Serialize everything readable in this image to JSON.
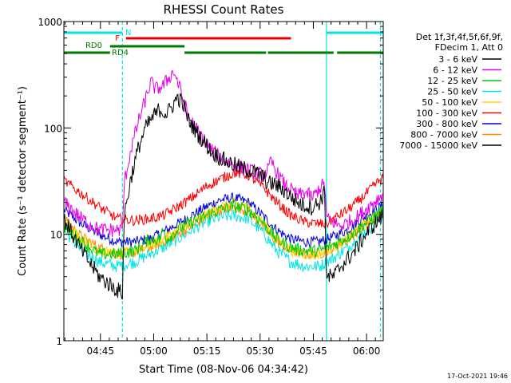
{
  "chart_data": {
    "type": "line",
    "title": "RHESSI Count Rates",
    "xlabel": "Start Time (08-Nov-06 04:34:42)",
    "ylabel": "Count Rate (s⁻¹ detector segment⁻¹)",
    "y_scale": "log",
    "ylim": [
      1,
      1000
    ],
    "xlim_minutes": [
      0.0,
      90.0
    ],
    "y_ticks": [
      {
        "value": 1,
        "label": "1"
      },
      {
        "value": 10,
        "label": "10"
      },
      {
        "value": 100,
        "label": "100"
      },
      {
        "value": 1000,
        "label": "1000"
      }
    ],
    "x_ticks": [
      {
        "minute": 10.3,
        "label": "04:45"
      },
      {
        "minute": 25.3,
        "label": "05:00"
      },
      {
        "minute": 40.3,
        "label": "05:15"
      },
      {
        "minute": 55.3,
        "label": "05:30"
      },
      {
        "minute": 70.3,
        "label": "05:45"
      },
      {
        "minute": 85.3,
        "label": "06:00"
      }
    ],
    "legend_header": [
      "Det 1f,3f,4f,5f,6f,9f,",
      "FDecim 1, Att 0"
    ],
    "series": [
      {
        "name": "3 - 6 keV",
        "color": "#000000",
        "noise": 0.08,
        "points": [
          [
            0,
            14
          ],
          [
            5,
            7
          ],
          [
            10,
            4
          ],
          [
            15,
            3
          ],
          [
            16.5,
            2.8
          ],
          [
            17,
            15
          ],
          [
            19,
            35
          ],
          [
            21,
            65
          ],
          [
            23,
            100
          ],
          [
            25,
            125
          ],
          [
            27,
            150
          ],
          [
            29,
            135
          ],
          [
            31,
            170
          ],
          [
            32,
            195
          ],
          [
            33.5,
            170
          ],
          [
            35,
            120
          ],
          [
            38,
            85
          ],
          [
            42,
            58
          ],
          [
            46,
            48
          ],
          [
            50,
            42
          ],
          [
            54,
            38
          ],
          [
            56,
            35
          ],
          [
            57.5,
            30
          ],
          [
            59,
            30
          ],
          [
            62,
            26
          ],
          [
            65,
            21
          ],
          [
            67,
            19
          ],
          [
            70,
            18
          ],
          [
            72,
            20
          ],
          [
            73.5,
            25
          ],
          [
            74,
            4
          ],
          [
            76,
            4
          ],
          [
            78,
            5
          ],
          [
            82,
            7
          ],
          [
            85,
            10
          ],
          [
            88,
            13
          ],
          [
            90,
            15
          ]
        ]
      },
      {
        "name": "6 - 12 keV",
        "color": "#e600e6",
        "noise": 0.07,
        "points": [
          [
            0,
            20
          ],
          [
            5,
            14
          ],
          [
            10,
            11
          ],
          [
            15,
            11
          ],
          [
            16.5,
            11
          ],
          [
            17,
            30
          ],
          [
            19,
            65
          ],
          [
            21,
            115
          ],
          [
            23,
            185
          ],
          [
            24.5,
            270
          ],
          [
            26,
            230
          ],
          [
            28,
            250
          ],
          [
            30,
            310
          ],
          [
            31,
            340
          ],
          [
            33,
            220
          ],
          [
            35,
            130
          ],
          [
            38,
            90
          ],
          [
            42,
            60
          ],
          [
            46,
            48
          ],
          [
            50,
            42
          ],
          [
            54,
            38
          ],
          [
            56,
            36
          ],
          [
            57.5,
            40
          ],
          [
            58.5,
            48
          ],
          [
            60,
            38
          ],
          [
            62,
            30
          ],
          [
            64,
            26
          ],
          [
            66,
            23
          ],
          [
            68,
            25
          ],
          [
            70,
            22
          ],
          [
            72,
            27
          ],
          [
            73.5,
            30
          ],
          [
            74,
            14
          ],
          [
            78,
            12
          ],
          [
            82,
            14
          ],
          [
            85,
            17
          ],
          [
            88,
            21
          ],
          [
            90,
            24
          ]
        ]
      },
      {
        "name": "12 - 25 keV",
        "color": "#00cc00",
        "noise": 0.06,
        "points": [
          [
            0,
            12
          ],
          [
            5,
            8.5
          ],
          [
            10,
            6.5
          ],
          [
            15,
            6.5
          ],
          [
            20,
            7
          ],
          [
            24,
            9
          ],
          [
            27,
            9
          ],
          [
            28,
            11
          ],
          [
            29,
            9
          ],
          [
            32,
            11
          ],
          [
            36,
            13
          ],
          [
            40,
            15
          ],
          [
            44,
            17
          ],
          [
            48,
            18.5
          ],
          [
            52,
            17
          ],
          [
            56,
            13
          ],
          [
            60,
            9
          ],
          [
            64,
            7.5
          ],
          [
            68,
            7
          ],
          [
            72,
            7
          ],
          [
            76,
            8
          ],
          [
            80,
            9.5
          ],
          [
            84,
            12
          ],
          [
            88,
            15
          ],
          [
            90,
            17
          ]
        ]
      },
      {
        "name": "25 - 50 keV",
        "color": "#00e5e5",
        "noise": 0.06,
        "points": [
          [
            0,
            11
          ],
          [
            5,
            7
          ],
          [
            10,
            5.5
          ],
          [
            15,
            5
          ],
          [
            20,
            5.5
          ],
          [
            24,
            6.5
          ],
          [
            28,
            7.5
          ],
          [
            32,
            9
          ],
          [
            36,
            11
          ],
          [
            40,
            13
          ],
          [
            44,
            14.5
          ],
          [
            48,
            15
          ],
          [
            52,
            14
          ],
          [
            56,
            10.5
          ],
          [
            60,
            7
          ],
          [
            64,
            5.5
          ],
          [
            68,
            5
          ],
          [
            72,
            5
          ],
          [
            76,
            6
          ],
          [
            80,
            7.5
          ],
          [
            84,
            10
          ],
          [
            88,
            13
          ],
          [
            90,
            15
          ]
        ]
      },
      {
        "name": "50 - 100 keV",
        "color": "#ffd700",
        "noise": 0.05,
        "points": [
          [
            0,
            13
          ],
          [
            5,
            9
          ],
          [
            10,
            7
          ],
          [
            15,
            6.5
          ],
          [
            20,
            7
          ],
          [
            24,
            8
          ],
          [
            28,
            9
          ],
          [
            32,
            11
          ],
          [
            36,
            13
          ],
          [
            40,
            15.5
          ],
          [
            44,
            18
          ],
          [
            48,
            19.5
          ],
          [
            52,
            18
          ],
          [
            56,
            13
          ],
          [
            60,
            9
          ],
          [
            64,
            7
          ],
          [
            68,
            6.5
          ],
          [
            72,
            6.5
          ],
          [
            76,
            7.5
          ],
          [
            80,
            9
          ],
          [
            84,
            12
          ],
          [
            88,
            15
          ],
          [
            90,
            17
          ]
        ]
      },
      {
        "name": "100 - 300 keV",
        "color": "#ff0000",
        "noise": 0.05,
        "points": [
          [
            0,
            32
          ],
          [
            5,
            24
          ],
          [
            10,
            18
          ],
          [
            15,
            14
          ],
          [
            20,
            13.5
          ],
          [
            24,
            14
          ],
          [
            28,
            15
          ],
          [
            32,
            18
          ],
          [
            36,
            22
          ],
          [
            40,
            28
          ],
          [
            44,
            33
          ],
          [
            48,
            38
          ],
          [
            52,
            36
          ],
          [
            56,
            28
          ],
          [
            60,
            20
          ],
          [
            64,
            15
          ],
          [
            68,
            13
          ],
          [
            72,
            12.5
          ],
          [
            74,
            12.5
          ],
          [
            76,
            14
          ],
          [
            80,
            17
          ],
          [
            84,
            22
          ],
          [
            88,
            30
          ],
          [
            90,
            34
          ]
        ]
      },
      {
        "name": "300 - 800 keV",
        "color": "#0000e0",
        "noise": 0.05,
        "points": [
          [
            0,
            17
          ],
          [
            5,
            12.5
          ],
          [
            10,
            10
          ],
          [
            15,
            8.5
          ],
          [
            20,
            8.5
          ],
          [
            24,
            9
          ],
          [
            28,
            10.5
          ],
          [
            32,
            12.5
          ],
          [
            36,
            15
          ],
          [
            40,
            18
          ],
          [
            44,
            21
          ],
          [
            48,
            22
          ],
          [
            52,
            20
          ],
          [
            56,
            15
          ],
          [
            60,
            11
          ],
          [
            64,
            9
          ],
          [
            68,
            8.5
          ],
          [
            72,
            8.5
          ],
          [
            76,
            9.5
          ],
          [
            80,
            11
          ],
          [
            84,
            14
          ],
          [
            88,
            17
          ],
          [
            90,
            19
          ]
        ]
      },
      {
        "name": "800 - 7000 keV",
        "color": "#ff8c00",
        "noise": 0.05,
        "points": [
          [
            0,
            14
          ],
          [
            5,
            9.5
          ],
          [
            10,
            7.5
          ],
          [
            15,
            6.5
          ],
          [
            20,
            6.8
          ],
          [
            24,
            7.5
          ],
          [
            28,
            8.5
          ],
          [
            32,
            10
          ],
          [
            36,
            12
          ],
          [
            40,
            14.5
          ],
          [
            44,
            17
          ],
          [
            48,
            18
          ],
          [
            52,
            16.5
          ],
          [
            56,
            12
          ],
          [
            60,
            8.5
          ],
          [
            64,
            7
          ],
          [
            68,
            6.5
          ],
          [
            72,
            6.5
          ],
          [
            76,
            7.5
          ],
          [
            80,
            9
          ],
          [
            84,
            11.5
          ],
          [
            88,
            14
          ],
          [
            90,
            16
          ]
        ]
      },
      {
        "name": "7000 - 15000 keV",
        "color": "#000000",
        "noise": 0,
        "points": []
      }
    ],
    "flags": [
      {
        "label": "N",
        "color": "#00e5e5",
        "segments": [
          [
            0,
            16.5
          ],
          [
            74,
            90
          ]
        ]
      },
      {
        "label": "F",
        "color": "#e60000",
        "segments": [
          [
            17.5,
            64
          ]
        ]
      },
      {
        "label": "RD0",
        "color": "#007a00",
        "segments": [
          [
            13,
            34
          ]
        ]
      },
      {
        "label": "RD4",
        "color": "#007a00",
        "segments": [
          [
            0,
            13
          ],
          [
            34,
            57
          ],
          [
            57.5,
            76
          ],
          [
            77,
            90
          ]
        ]
      }
    ],
    "vertical_markers": [
      {
        "minute": 16.5,
        "color": "#00e5e5",
        "style": "dashed"
      },
      {
        "minute": 74,
        "color": "#00e5e5",
        "style": "solid"
      },
      {
        "minute": 89.2,
        "color": "#00e5e5",
        "style": "dashed"
      }
    ]
  },
  "timestamp": "17-Oct-2021 19:46"
}
